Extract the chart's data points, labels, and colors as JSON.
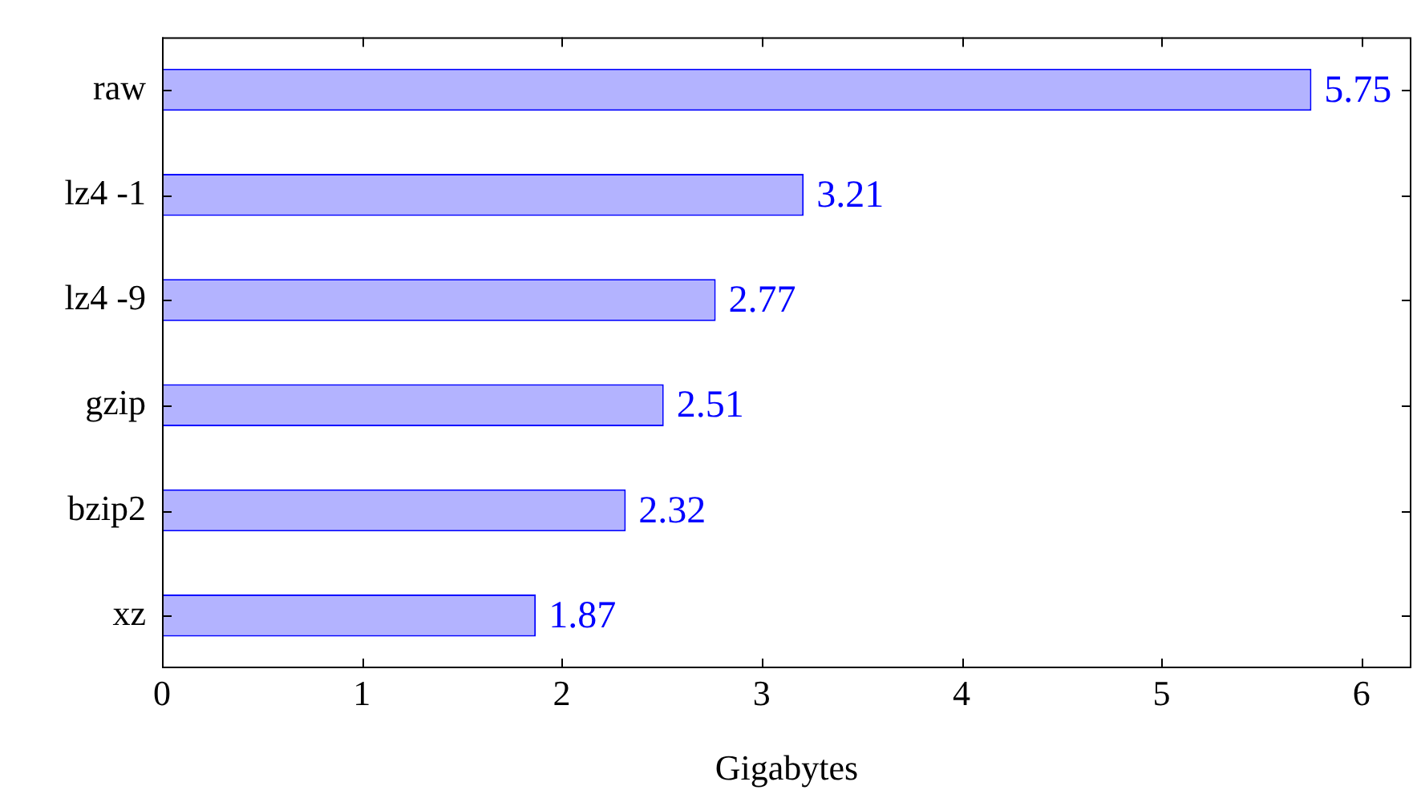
{
  "chart_data": {
    "type": "bar",
    "orientation": "horizontal",
    "xlabel": "Gigabytes",
    "categories": [
      "raw",
      "lz4 -1",
      "lz4 -9",
      "gzip",
      "bzip2",
      "xz"
    ],
    "values": [
      5.75,
      3.21,
      2.77,
      2.51,
      2.32,
      1.87
    ],
    "color": "#b3b3ff",
    "xlim": [
      0,
      6.25
    ],
    "xticks": [
      0,
      1,
      2,
      3,
      4,
      5,
      6
    ],
    "grid": false,
    "legend": false,
    "data_labels": true
  }
}
